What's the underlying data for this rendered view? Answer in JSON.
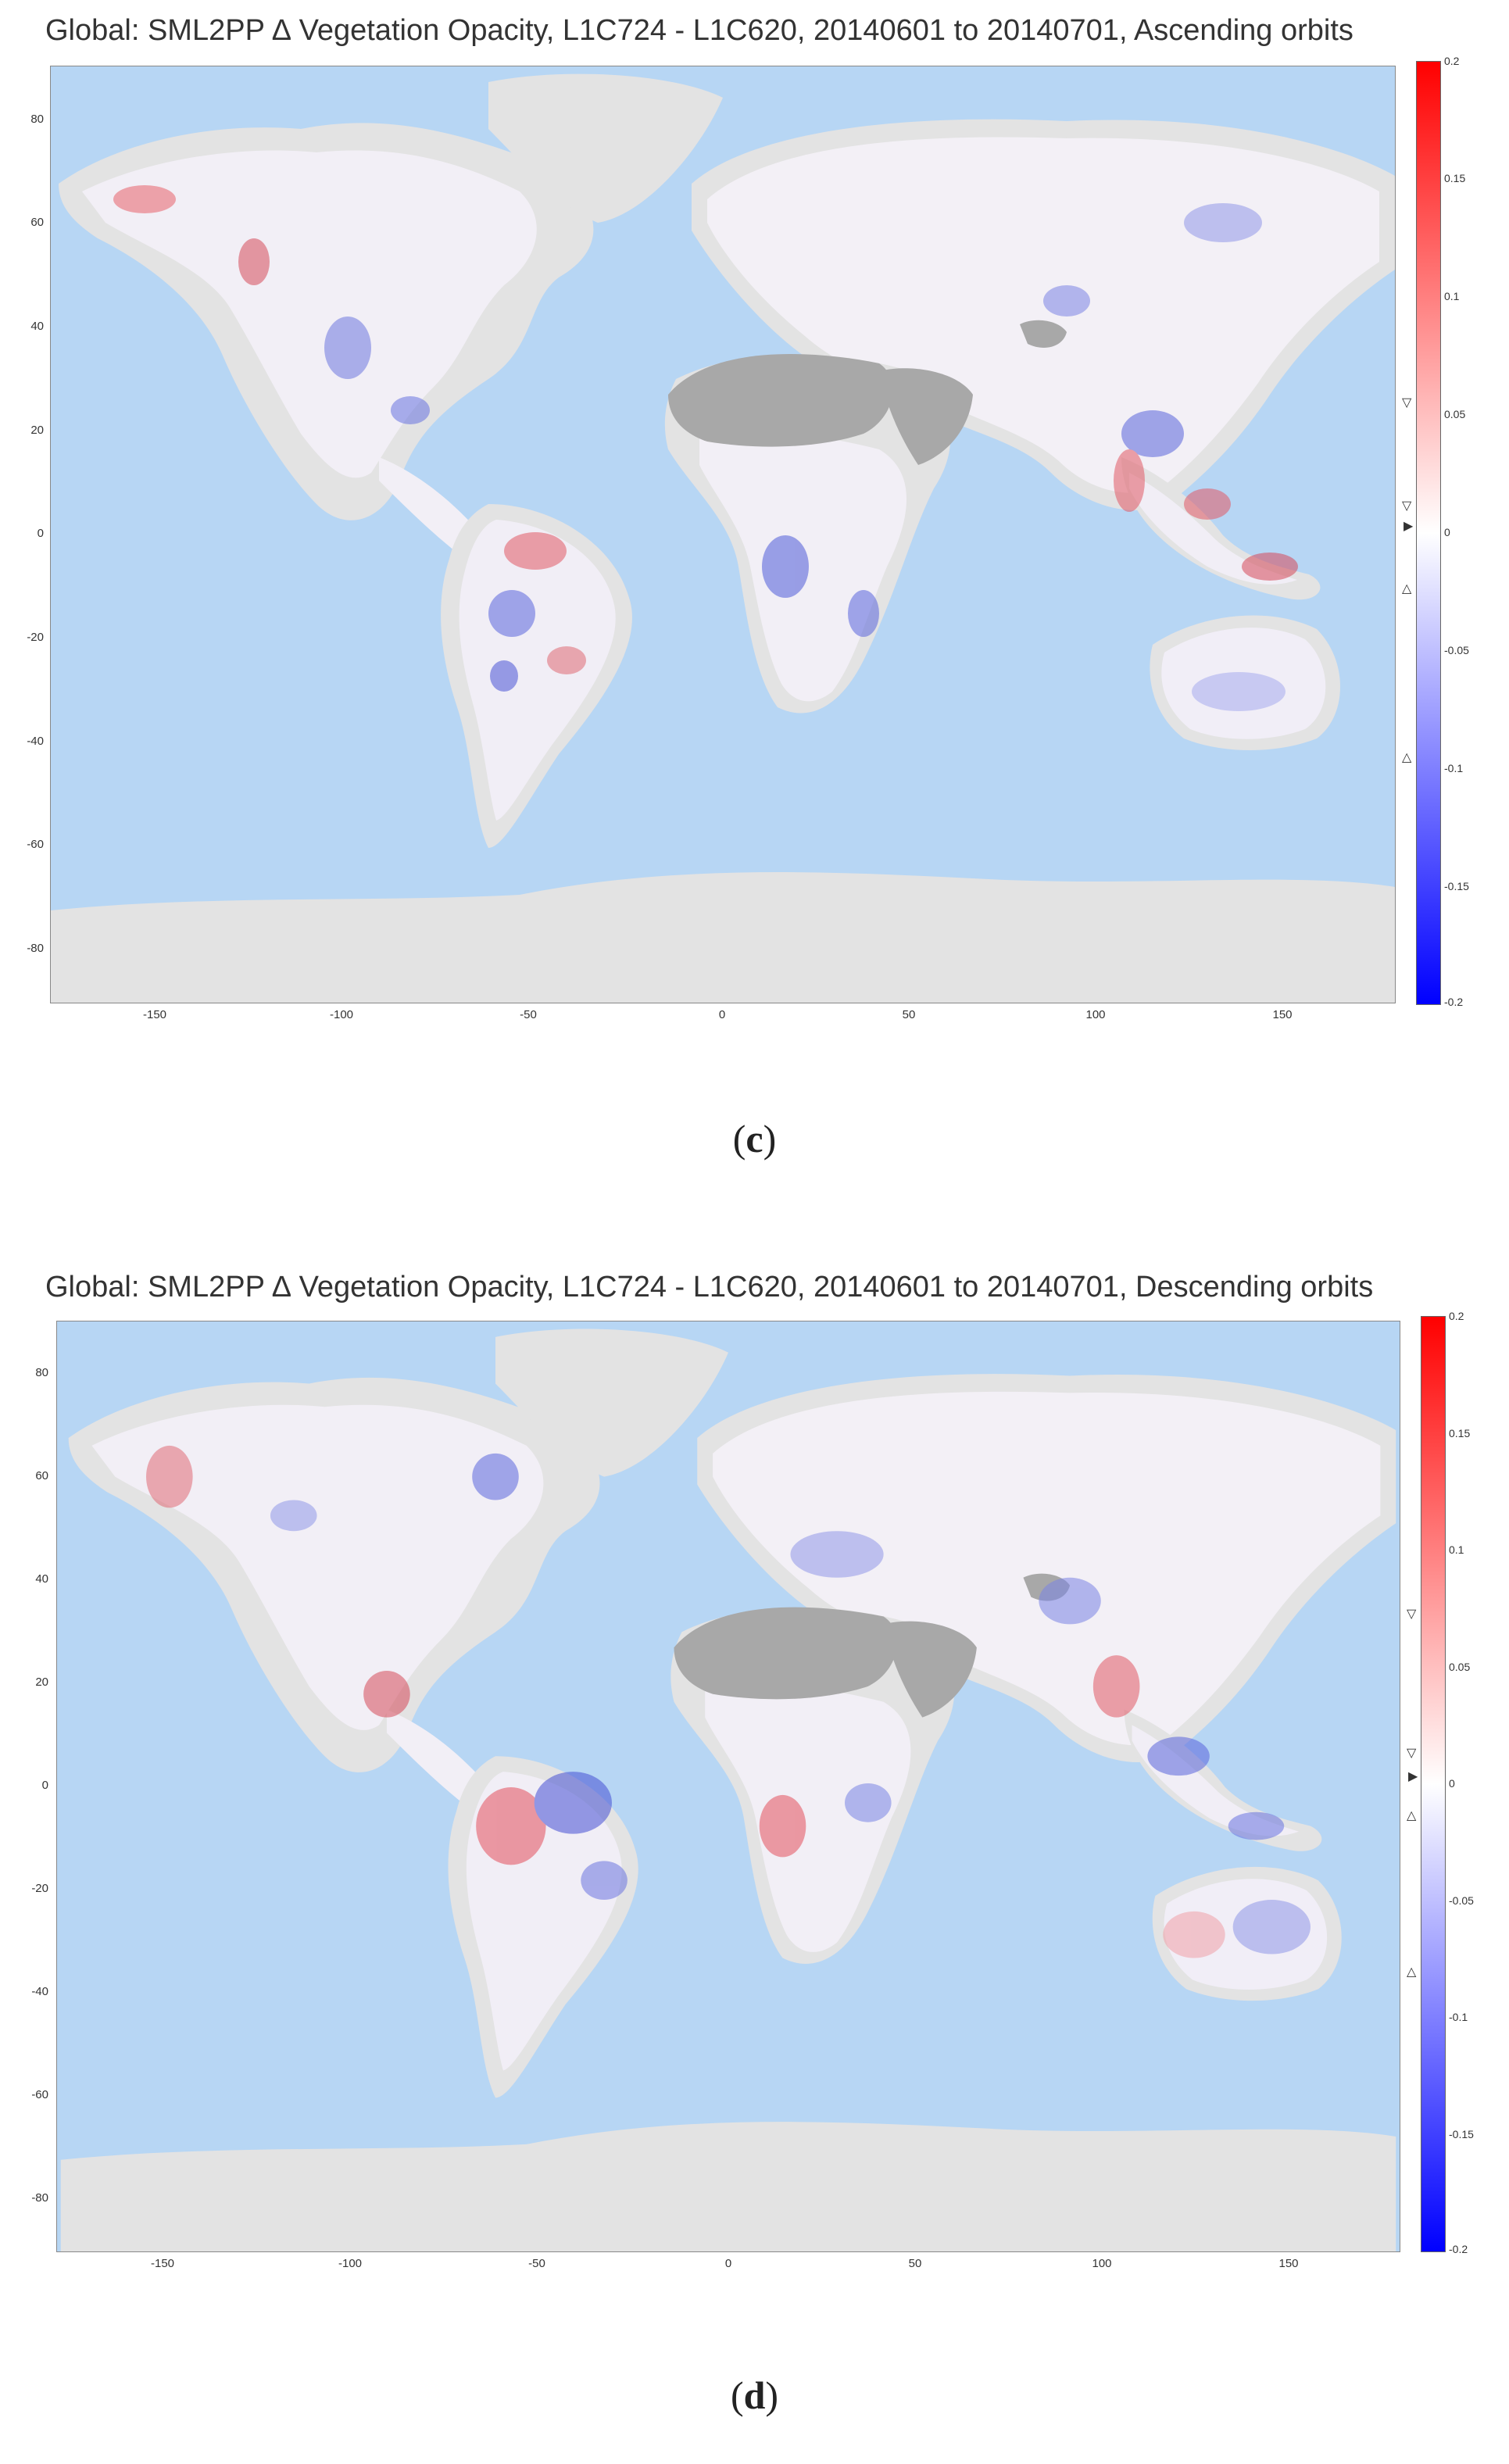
{
  "panels": [
    {
      "id": "c",
      "title": "Global: SML2PP ∆ Vegetation Opacity, L1C724 - L1C620, 20140601 to 20140701, Ascending orbits",
      "caption_letter": "c"
    },
    {
      "id": "d",
      "title": "Global: SML2PP ∆ Vegetation Opacity, L1C724 - L1C620, 20140601 to 20140701, Descending orbits",
      "caption_letter": "d"
    }
  ],
  "axes": {
    "lat_ticks": [
      "80",
      "60",
      "40",
      "20",
      "0",
      "-20",
      "-40",
      "-60",
      "-80"
    ],
    "lon_ticks": [
      "-150",
      "-100",
      "-50",
      "0",
      "50",
      "100",
      "150"
    ]
  },
  "colorbar": {
    "ticks": [
      "0.2",
      "0.15",
      "0.1",
      "0.05",
      "0",
      "-0.05",
      "-0.1",
      "-0.15",
      "-0.2"
    ],
    "range": [
      -0.2,
      0.2
    ],
    "colors": {
      "high": "#ff0000",
      "mid": "#ffffff",
      "low": "#0000ff"
    }
  },
  "colors": {
    "ocean": "#b7d6f4",
    "land_mask": "#e3e3e3",
    "desert_mask": "#a8a8a8",
    "land_white": "#f5f3f6"
  }
}
